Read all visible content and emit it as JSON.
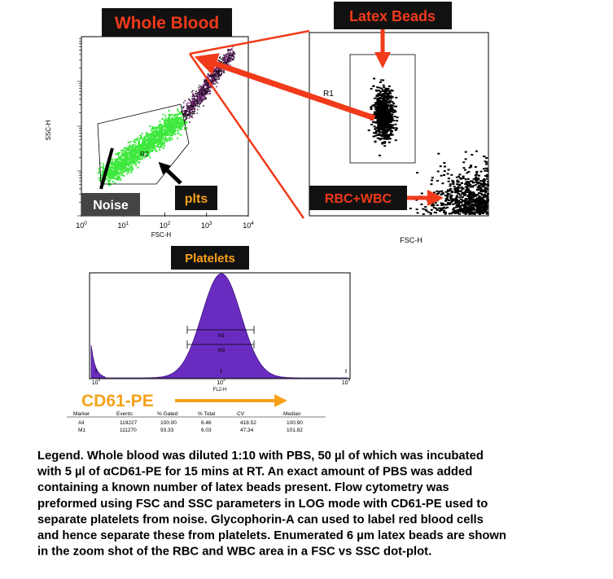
{
  "panels": {
    "whole_blood": {
      "title": "Whole Blood",
      "y_label": "SSC-H",
      "x_label": "FSC-H",
      "gate": "R2",
      "noise": "Noise",
      "plts": "plts",
      "x_ticks": [
        {
          "base": "10",
          "exp": "0"
        },
        {
          "base": "10",
          "exp": "1"
        },
        {
          "base": "10",
          "exp": "2"
        },
        {
          "base": "10",
          "exp": "3"
        },
        {
          "base": "10",
          "exp": "4"
        }
      ]
    },
    "zoom": {
      "title": "Latex Beads",
      "gate": "R1",
      "cells": "RBC+WBC",
      "x_label": "FSC-H"
    },
    "platelets": {
      "title": "Platelets",
      "x_label": "FL2-H",
      "markers": [
        "M1",
        "M3"
      ],
      "stain": "CD61-PE",
      "x_ticks": [
        {
          "base": "10",
          "exp": "0"
        },
        {
          "base": "10",
          "exp": "2"
        },
        {
          "base": "10",
          "exp": "4"
        }
      ]
    }
  },
  "table": {
    "header": [
      "Marker",
      "Events",
      "% Gated",
      "% Total",
      "CV",
      "Median"
    ],
    "rows": [
      [
        "All",
        "119227",
        "100.00",
        "6.46",
        "418.52",
        "100.90"
      ],
      [
        "M1",
        "111270",
        "93.33",
        "6.03",
        "47.34",
        "101.82"
      ]
    ]
  },
  "legend": [
    "Legend. Whole blood was diluted 1:10 with PBS, 50 µl of which was incubated",
    " with 5 µl of αCD61-PE for 15 mins at RT. An exact amount of PBS was added",
    "containing a known number of latex beads present. Flow cytometry was",
    "preformed using FSC and SSC parameters in LOG mode with CD61-PE used to",
    "separate platelets from noise. Glycophorin-A can used to label red blood cells",
    "and hence separate these from platelets. Enumerated  6 µm latex beads are shown",
    "in the zoom shot of the RBC and WBC area in a FSC vs SSC dot-plot."
  ]
}
